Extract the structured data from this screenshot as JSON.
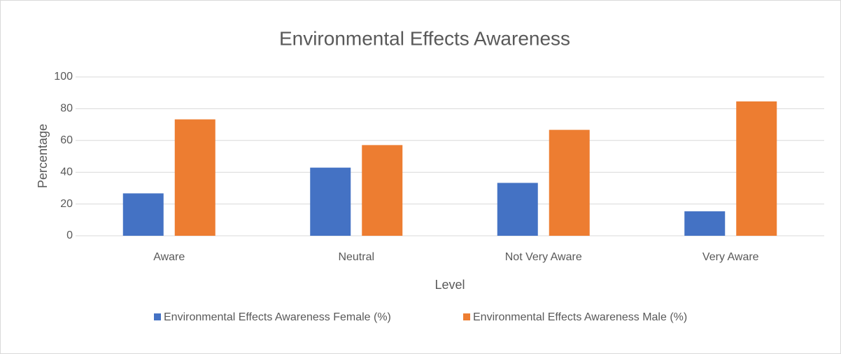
{
  "chart_data": {
    "type": "bar",
    "title": "Environmental Effects Awareness",
    "x_label": "Level",
    "y_label": "Percentage",
    "categories": [
      "Aware",
      "Neutral",
      "Not Very Aware",
      "Very Aware"
    ],
    "series": [
      {
        "name": "Environmental Effects Awareness Female (%)",
        "color": "#4472c4",
        "values": [
          26.7,
          42.9,
          33.3,
          15.4
        ]
      },
      {
        "name": "Environmental Effects Awareness Male (%)",
        "color": "#ed7d31",
        "values": [
          73.3,
          57.1,
          66.7,
          84.6
        ]
      }
    ],
    "ylim": [
      0,
      100
    ],
    "yticks": [
      0,
      20,
      40,
      60,
      80,
      100
    ],
    "grid": true,
    "legend": "bottom"
  }
}
